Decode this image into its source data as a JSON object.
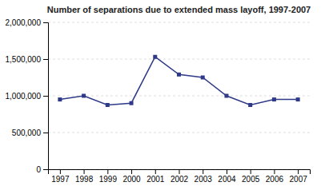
{
  "chart_data": {
    "type": "line",
    "title": "Number of separations due to extended mass layoff, 1997-2007",
    "x": [
      1997,
      1998,
      1999,
      2000,
      2001,
      2002,
      2003,
      2004,
      2005,
      2006,
      2007
    ],
    "values": [
      950000,
      1000000,
      875000,
      900000,
      1530000,
      1290000,
      1250000,
      1000000,
      875000,
      950000,
      950000
    ],
    "color": "#2E3A87",
    "marker": "square",
    "xlim": [
      1996.5,
      2007.5
    ],
    "xticks": [
      1997,
      1998,
      1999,
      2000,
      2001,
      2002,
      2003,
      2004,
      2005,
      2006,
      2007
    ],
    "ylim": [
      0,
      2000000
    ],
    "yticks": [
      0,
      {
        "value": 500000,
        "label": "500,000"
      },
      {
        "value": 1000000,
        "label": "1,000,000"
      },
      {
        "value": 1500000,
        "label": "1,500,000"
      },
      {
        "value": 2000000,
        "label": "2,000,000"
      }
    ],
    "grid": true
  }
}
